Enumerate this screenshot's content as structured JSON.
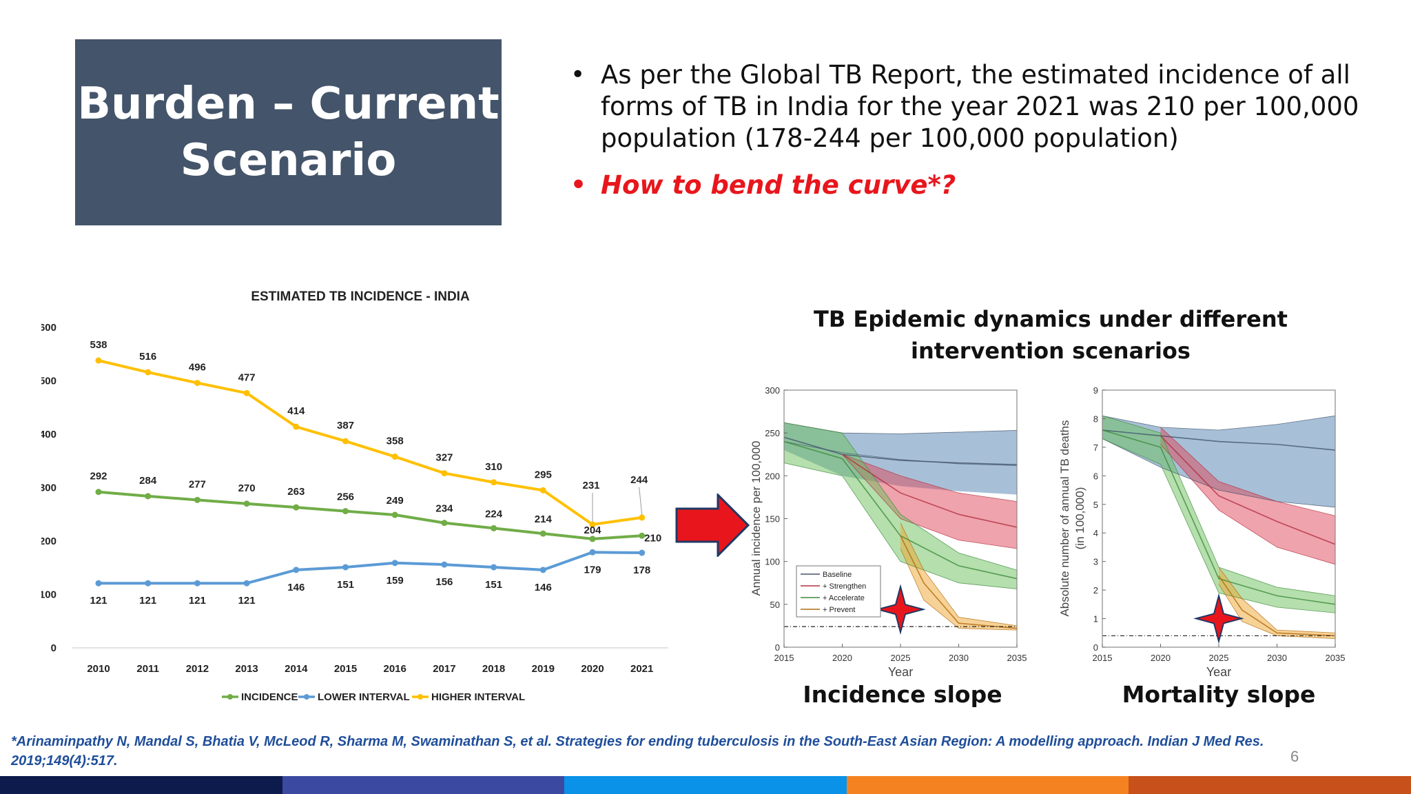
{
  "title": "Burden – Current Scenario",
  "bullets": [
    "As per the Global TB Report, the estimated incidence of all forms of TB in India for the year 2021 was 210 per 100,000 population (178-244 per 100,000 population)",
    "How to bend the curve*?"
  ],
  "chart1": {
    "title": "ESTIMATED TB INCIDENCE - INDIA",
    "legend": [
      "INCIDENCE",
      "LOWER INTERVAL",
      "HIGHER INTERVAL"
    ],
    "colors": {
      "incidence": "#70ad47",
      "lower": "#5b9bd5",
      "higher": "#ffc000"
    }
  },
  "chart2_title": "TB Epidemic dynamics under different intervention scenarios",
  "incidence_panel": {
    "ylabel": "Annual incidence per 100,000",
    "xlabel": "Year",
    "yticks": [
      "0",
      "50",
      "100",
      "150",
      "200",
      "250",
      "300"
    ],
    "xticks": [
      "2015",
      "2020",
      "2025",
      "2030",
      "2035"
    ],
    "legend": [
      "Baseline",
      "+ Strengthen",
      "+ Accelerate",
      "+ Prevent"
    ],
    "caption": "Incidence slope"
  },
  "mortality_panel": {
    "ylabel": "Absolute number of annual TB deaths",
    "ylabel2": "(in 100,000)",
    "xlabel": "Year",
    "yticks": [
      "0",
      "1",
      "2",
      "3",
      "4",
      "5",
      "6",
      "7",
      "8",
      "9"
    ],
    "xticks": [
      "2015",
      "2020",
      "2025",
      "2030",
      "2035"
    ],
    "caption": "Mortality slope"
  },
  "citation": "*Arinaminpathy N, Mandal S, Bhatia V, McLeod R, Sharma M, Swaminathan S, et al. Strategies for ending tuberculosis in the South-East Asian Region: A modelling approach. Indian J Med Res. 2019;149(4):517.",
  "page_number": "6",
  "footer_colors": [
    "#0d1b4c",
    "#3b4aa0",
    "#0a92e8",
    "#f58220",
    "#c8511b"
  ],
  "chart_data": [
    {
      "type": "line",
      "title": "ESTIMATED TB INCIDENCE - INDIA",
      "categories": [
        "2010",
        "2011",
        "2012",
        "2013",
        "2014",
        "2015",
        "2016",
        "2017",
        "2018",
        "2019",
        "2020",
        "2021"
      ],
      "ylim": [
        0,
        600
      ],
      "yticks": [
        0,
        100,
        200,
        300,
        400,
        500,
        600
      ],
      "grid": false,
      "legend_position": "bottom",
      "series": [
        {
          "name": "INCIDENCE",
          "values": [
            292,
            284,
            277,
            270,
            263,
            256,
            249,
            234,
            224,
            214,
            204,
            210
          ]
        },
        {
          "name": "LOWER INTERVAL",
          "values": [
            121,
            121,
            121,
            121,
            146,
            151,
            159,
            156,
            151,
            146,
            179,
            178
          ]
        },
        {
          "name": "HIGHER INTERVAL",
          "values": [
            538,
            516,
            496,
            477,
            414,
            387,
            358,
            327,
            310,
            295,
            231,
            244
          ]
        }
      ]
    },
    {
      "type": "area",
      "ylabel": "Annual incidence per 100,000",
      "xlabel": "Year",
      "xlim": [
        2015,
        2035
      ],
      "ylim": [
        0,
        300
      ],
      "legend_position": "bottom-left",
      "series": [
        {
          "name": "Baseline",
          "x": [
            2015,
            2020,
            2025,
            2030,
            2035
          ],
          "values": [
            245,
            225,
            218,
            215,
            213
          ],
          "lower": [
            240,
            227,
            219,
            214,
            212
          ],
          "upper": [
            262,
            250,
            249,
            251,
            253
          ],
          "band_low": [
            230,
            200,
            188,
            182,
            178
          ]
        },
        {
          "name": "+ Strengthen",
          "x": [
            2020,
            2025,
            2030,
            2035
          ],
          "values": [
            225,
            180,
            155,
            140
          ],
          "lower": [
            225,
            150,
            125,
            115
          ],
          "upper": [
            225,
            200,
            180,
            170
          ]
        },
        {
          "name": "+ Accelerate",
          "x": [
            2015,
            2020,
            2025,
            2030,
            2035
          ],
          "values": [
            240,
            220,
            130,
            95,
            80
          ],
          "lower": [
            215,
            200,
            100,
            75,
            68
          ],
          "upper": [
            262,
            250,
            155,
            110,
            90
          ]
        },
        {
          "name": "+ Prevent",
          "x": [
            2025,
            2027,
            2030,
            2035
          ],
          "values": [
            130,
            75,
            28,
            22
          ],
          "lower": [
            115,
            55,
            22,
            20
          ],
          "upper": [
            145,
            90,
            35,
            25
          ]
        }
      ],
      "target": 24
    },
    {
      "type": "area",
      "ylabel": "Absolute number of annual TB deaths (in 100,000)",
      "xlabel": "Year",
      "xlim": [
        2015,
        2035
      ],
      "ylim": [
        0,
        9
      ],
      "series": [
        {
          "name": "Baseline",
          "x": [
            2015,
            2020,
            2025,
            2030,
            2035
          ],
          "values": [
            7.6,
            7.4,
            7.2,
            7.1,
            6.9
          ],
          "lower": [
            7.3,
            6.3,
            5.5,
            5.1,
            4.9
          ],
          "upper": [
            8.1,
            7.7,
            7.6,
            7.8,
            8.1
          ]
        },
        {
          "name": "+ Strengthen",
          "x": [
            2020,
            2025,
            2030,
            2035
          ],
          "values": [
            7.4,
            5.3,
            4.4,
            3.6
          ],
          "lower": [
            7.1,
            4.8,
            3.5,
            2.9
          ],
          "upper": [
            7.7,
            5.8,
            5.1,
            4.6
          ]
        },
        {
          "name": "+ Accelerate",
          "x": [
            2015,
            2020,
            2025,
            2030,
            2035
          ],
          "values": [
            7.6,
            7.0,
            2.4,
            1.8,
            1.5
          ],
          "lower": [
            7.3,
            6.4,
            1.9,
            1.4,
            1.2
          ],
          "upper": [
            8.1,
            7.5,
            2.8,
            2.1,
            1.8
          ]
        },
        {
          "name": "+ Prevent",
          "x": [
            2025,
            2027,
            2030,
            2035
          ],
          "values": [
            2.5,
            1.3,
            0.5,
            0.4
          ],
          "lower": [
            2.2,
            0.9,
            0.4,
            0.3
          ],
          "upper": [
            2.8,
            1.7,
            0.6,
            0.5
          ]
        }
      ],
      "target": 0.4
    }
  ]
}
